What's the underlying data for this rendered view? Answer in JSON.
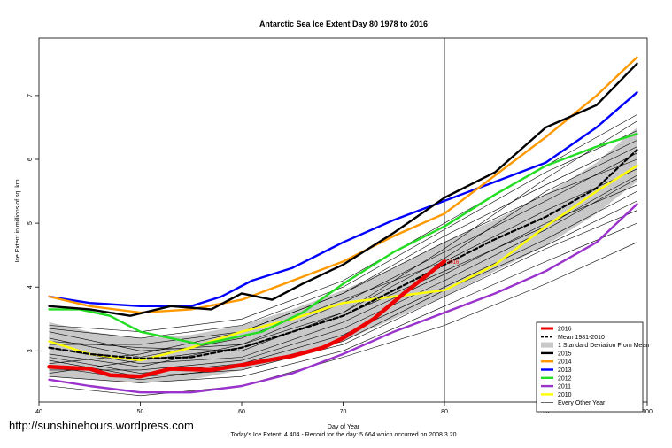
{
  "chart_data": {
    "type": "line",
    "title": "Antarctic Sea Ice Extent Day 80 1978 to 2016",
    "xlabel": "Day of Year",
    "ylabel": "Ice Extent in millions of sq. km.",
    "xlim": [
      40,
      100
    ],
    "ylim": [
      2.2,
      7.9
    ],
    "x_ticks": [
      40,
      50,
      60,
      70,
      80,
      90,
      100
    ],
    "y_ticks": [
      3,
      4,
      5,
      6,
      7
    ],
    "vertical_marker": 80,
    "marker_label": "2016",
    "legend_position": "bottom-right",
    "footer": "Today's Ice Extent: 4.404  - Record for the day: 5.664 which occurred on 2008 3 20",
    "watermark": "http://sunshinehours.wordpress.com",
    "std_band": {
      "x": [
        41,
        45,
        50,
        55,
        60,
        65,
        70,
        75,
        80,
        85,
        90,
        95,
        99
      ],
      "upper": [
        3.45,
        3.3,
        3.2,
        3.25,
        3.4,
        3.65,
        3.95,
        4.3,
        4.7,
        5.05,
        5.45,
        5.95,
        6.5
      ],
      "lower": [
        2.6,
        2.55,
        2.5,
        2.55,
        2.7,
        2.9,
        3.15,
        3.5,
        3.85,
        4.25,
        4.65,
        5.15,
        5.65
      ]
    },
    "series": [
      {
        "name": "2016",
        "color": "#ee0000",
        "width": 4.5,
        "dash": "",
        "x": [
          41,
          45,
          47,
          50,
          53,
          57,
          60,
          65,
          68,
          70,
          73,
          76,
          78,
          80
        ],
        "y": [
          2.75,
          2.72,
          2.62,
          2.6,
          2.72,
          2.7,
          2.78,
          2.92,
          3.05,
          3.2,
          3.5,
          3.9,
          4.15,
          4.404
        ]
      },
      {
        "name": "Mean 1981-2010",
        "color": "#000000",
        "width": 2.2,
        "dash": "5,3",
        "x": [
          41,
          45,
          50,
          55,
          60,
          65,
          70,
          75,
          80,
          85,
          90,
          95,
          99
        ],
        "y": [
          3.05,
          2.95,
          2.88,
          2.9,
          3.05,
          3.3,
          3.55,
          3.95,
          4.35,
          4.75,
          5.1,
          5.55,
          6.15
        ]
      },
      {
        "name": "2015",
        "color": "#000000",
        "width": 2.4,
        "dash": "",
        "x": [
          41,
          45,
          49,
          53,
          57,
          60,
          63,
          66,
          70,
          75,
          80,
          85,
          90,
          95,
          99
        ],
        "y": [
          3.7,
          3.65,
          3.55,
          3.7,
          3.65,
          3.9,
          3.8,
          4.05,
          4.35,
          4.85,
          5.4,
          5.8,
          6.5,
          6.85,
          7.5
        ]
      },
      {
        "name": "2014",
        "color": "#ff9900",
        "width": 2.4,
        "dash": "",
        "x": [
          41,
          45,
          50,
          55,
          60,
          65,
          70,
          75,
          80,
          85,
          90,
          95,
          99
        ],
        "y": [
          3.85,
          3.7,
          3.6,
          3.65,
          3.8,
          4.1,
          4.4,
          4.8,
          5.15,
          5.75,
          6.35,
          7.0,
          7.6
        ]
      },
      {
        "name": "2013",
        "color": "#0000ff",
        "width": 2.4,
        "dash": "",
        "x": [
          41,
          45,
          50,
          55,
          58,
          61,
          65,
          70,
          75,
          80,
          85,
          90,
          95,
          99
        ],
        "y": [
          3.85,
          3.75,
          3.7,
          3.7,
          3.85,
          4.1,
          4.3,
          4.7,
          5.05,
          5.35,
          5.65,
          5.95,
          6.5,
          7.05
        ]
      },
      {
        "name": "2012",
        "color": "#22dd22",
        "width": 2.4,
        "dash": "",
        "x": [
          41,
          44,
          47,
          50,
          53,
          56,
          59,
          62,
          66,
          70,
          75,
          80,
          85,
          90,
          95,
          99
        ],
        "y": [
          3.65,
          3.65,
          3.55,
          3.3,
          3.2,
          3.1,
          3.2,
          3.3,
          3.6,
          4.05,
          4.55,
          4.95,
          5.45,
          5.9,
          6.2,
          6.4
        ]
      },
      {
        "name": "2011",
        "color": "#9933cc",
        "width": 2.4,
        "dash": "",
        "x": [
          41,
          45,
          50,
          55,
          60,
          65,
          70,
          75,
          80,
          85,
          90,
          95,
          99
        ],
        "y": [
          2.55,
          2.45,
          2.35,
          2.35,
          2.45,
          2.65,
          2.95,
          3.3,
          3.6,
          3.9,
          4.25,
          4.7,
          5.3
        ]
      },
      {
        "name": "2010",
        "color": "#ffff00",
        "width": 2.4,
        "dash": "",
        "x": [
          41,
          45,
          50,
          55,
          60,
          65,
          70,
          75,
          80,
          85,
          90,
          95,
          99
        ],
        "y": [
          3.15,
          2.95,
          2.85,
          3.05,
          3.3,
          3.5,
          3.75,
          3.85,
          3.95,
          4.35,
          4.95,
          5.5,
          5.9
        ]
      },
      {
        "name": "Every Other Year",
        "color": "#000000",
        "width": 0.6,
        "dash": "",
        "x": [
          41,
          50,
          60,
          70,
          80,
          90,
          99
        ],
        "y": [
          3.0,
          2.85,
          3.0,
          3.5,
          4.3,
          5.1,
          6.0
        ]
      }
    ],
    "other_years": [
      {
        "x": [
          41,
          50,
          60,
          70,
          80,
          90,
          99
        ],
        "y": [
          3.3,
          3.0,
          3.1,
          3.6,
          4.6,
          5.7,
          6.6
        ]
      },
      {
        "x": [
          41,
          50,
          60,
          70,
          80,
          90,
          99
        ],
        "y": [
          2.85,
          2.6,
          2.7,
          3.1,
          3.85,
          4.6,
          5.2
        ]
      },
      {
        "x": [
          41,
          50,
          60,
          70,
          80,
          90,
          99
        ],
        "y": [
          3.4,
          3.3,
          3.5,
          4.1,
          5.0,
          5.9,
          6.7
        ]
      },
      {
        "x": [
          41,
          50,
          60,
          70,
          80,
          90,
          99
        ],
        "y": [
          2.45,
          2.3,
          2.45,
          2.9,
          3.4,
          4.05,
          4.7
        ]
      },
      {
        "x": [
          41,
          50,
          60,
          70,
          80,
          90,
          99
        ],
        "y": [
          3.1,
          3.1,
          3.3,
          3.9,
          4.8,
          5.6,
          6.3
        ]
      },
      {
        "x": [
          41,
          50,
          60,
          70,
          80,
          90,
          99
        ],
        "y": [
          2.7,
          2.7,
          2.85,
          3.35,
          4.1,
          4.9,
          5.7
        ]
      },
      {
        "x": [
          41,
          50,
          60,
          70,
          80,
          90,
          99
        ],
        "y": [
          2.95,
          2.75,
          3.1,
          3.75,
          4.55,
          5.35,
          6.1
        ]
      },
      {
        "x": [
          41,
          50,
          60,
          70,
          80,
          90,
          99
        ],
        "y": [
          2.6,
          2.5,
          2.6,
          3.0,
          3.7,
          4.4,
          5.0
        ]
      },
      {
        "x": [
          41,
          50,
          60,
          70,
          80,
          90,
          99
        ],
        "y": [
          3.2,
          2.9,
          3.2,
          3.8,
          4.4,
          5.2,
          5.85
        ]
      },
      {
        "x": [
          41,
          50,
          60,
          70,
          80,
          90,
          99
        ],
        "y": [
          2.8,
          2.95,
          3.3,
          3.9,
          4.7,
          5.45,
          6.0
        ]
      },
      {
        "x": [
          41,
          50,
          60,
          70,
          80,
          90,
          99
        ],
        "y": [
          3.05,
          2.8,
          2.9,
          3.45,
          4.2,
          5.0,
          5.6
        ]
      },
      {
        "x": [
          41,
          50,
          60,
          70,
          80,
          90,
          99
        ],
        "y": [
          2.9,
          2.65,
          2.8,
          3.25,
          4.0,
          4.75,
          5.5
        ]
      },
      {
        "x": [
          41,
          50,
          60,
          70,
          80,
          90,
          99
        ],
        "y": [
          3.35,
          3.2,
          3.4,
          4.0,
          4.9,
          5.8,
          6.45
        ]
      },
      {
        "x": [
          41,
          50,
          60,
          70,
          80,
          90,
          99
        ],
        "y": [
          2.75,
          2.55,
          2.75,
          3.15,
          3.95,
          4.65,
          5.35
        ]
      },
      {
        "x": [
          41,
          50,
          60,
          70,
          80,
          90,
          99
        ],
        "y": [
          3.15,
          3.05,
          3.0,
          3.6,
          4.45,
          5.5,
          6.2
        ]
      },
      {
        "x": [
          41,
          50,
          60,
          70,
          80,
          90,
          99
        ],
        "y": [
          2.65,
          2.85,
          3.05,
          3.55,
          4.25,
          4.95,
          5.75
        ]
      }
    ]
  }
}
